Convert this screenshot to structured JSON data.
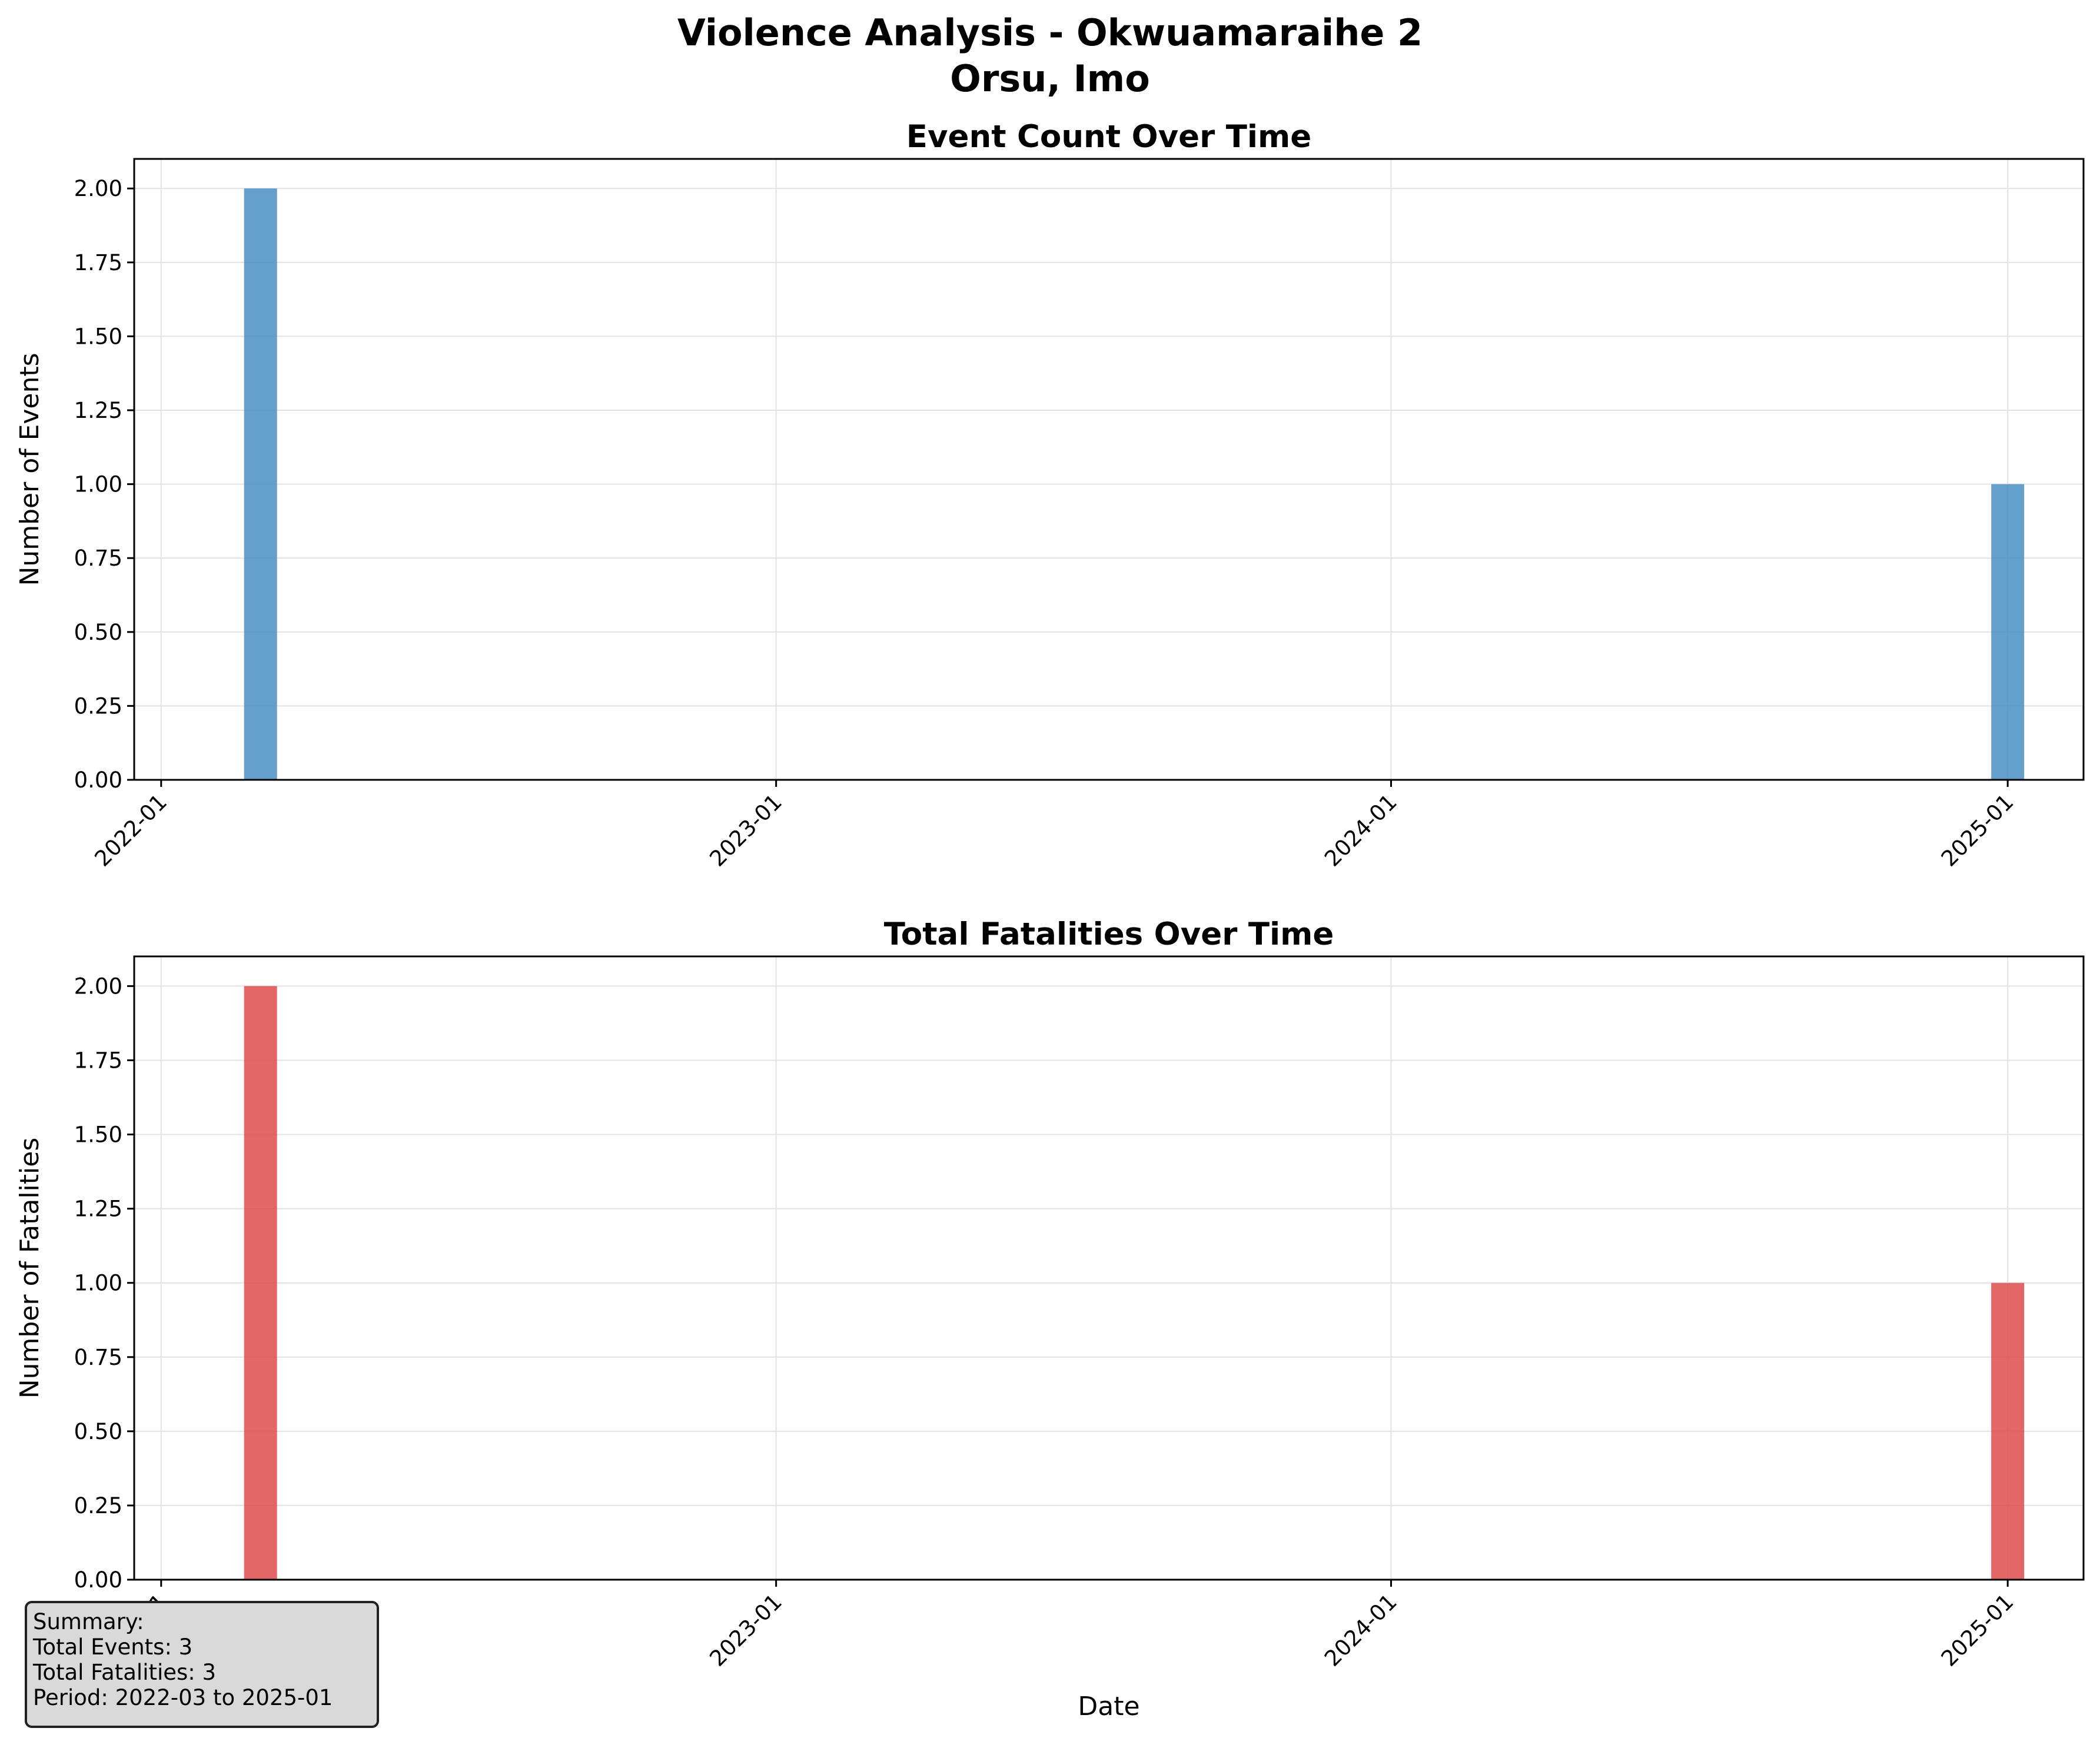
{
  "figure": {
    "title_line1": "Violence Analysis - Okwuamaraihe 2",
    "title_line2": "Orsu, Imo"
  },
  "chart_data": [
    {
      "type": "bar",
      "title": "Event Count Over Time",
      "xlabel": "",
      "ylabel": "Number of Events",
      "x": [
        "2022-03",
        "2025-01"
      ],
      "values": [
        2,
        1
      ],
      "xlim": [
        "2021-12-16",
        "2025-02-15"
      ],
      "ylim": [
        0,
        2.1
      ],
      "x_tick_labels": [
        "2022-01",
        "2023-01",
        "2024-01",
        "2025-01"
      ],
      "y_ticks": [
        0.0,
        0.25,
        0.5,
        0.75,
        1.0,
        1.25,
        1.5,
        1.75,
        2.0
      ],
      "y_tick_labels": [
        "0.00",
        "0.25",
        "0.50",
        "0.75",
        "1.00",
        "1.25",
        "1.50",
        "1.75",
        "2.00"
      ],
      "grid": true,
      "color": "#4a8fc4"
    },
    {
      "type": "bar",
      "title": "Total Fatalities Over Time",
      "xlabel": "Date",
      "ylabel": "Number of Fatalities",
      "x": [
        "2022-03",
        "2025-01"
      ],
      "values": [
        2,
        1
      ],
      "xlim": [
        "2021-12-16",
        "2025-02-15"
      ],
      "ylim": [
        0,
        2.1
      ],
      "x_tick_labels": [
        "2022-01",
        "2023-01",
        "2024-01",
        "2025-01"
      ],
      "y_ticks": [
        0.0,
        0.25,
        0.5,
        0.75,
        1.0,
        1.25,
        1.5,
        1.75,
        2.0
      ],
      "y_tick_labels": [
        "0.00",
        "0.25",
        "0.50",
        "0.75",
        "1.00",
        "1.25",
        "1.50",
        "1.75",
        "2.00"
      ],
      "grid": true,
      "color": "#de4c4c"
    }
  ],
  "summary": {
    "heading": "Summary:",
    "total_events": "Total Events: 3",
    "total_fatalities": "Total Fatalities: 3",
    "period": "Period: 2022-03 to 2025-01"
  }
}
